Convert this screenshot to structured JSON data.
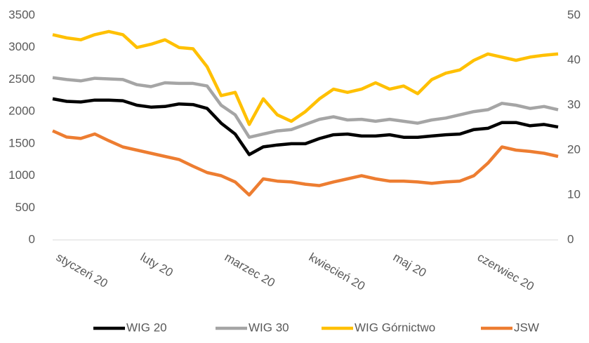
{
  "chart_data": {
    "type": "line",
    "categories": [
      "styczeń 20",
      null,
      null,
      null,
      null,
      null,
      "luty 20",
      null,
      null,
      null,
      null,
      null,
      "marzec 20",
      null,
      null,
      null,
      null,
      null,
      "kwiecień 20",
      null,
      null,
      null,
      null,
      null,
      "maj 20",
      null,
      null,
      null,
      null,
      null,
      "czerwiec 20",
      null,
      null,
      null,
      null,
      null,
      null
    ],
    "series": [
      {
        "name": "WIG 20",
        "color": "#000000",
        "values": [
          2200,
          2160,
          2150,
          2180,
          2180,
          2170,
          2100,
          2070,
          2080,
          2120,
          2110,
          2050,
          1820,
          1650,
          1330,
          1450,
          1480,
          1500,
          1500,
          1580,
          1640,
          1650,
          1620,
          1620,
          1640,
          1600,
          1600,
          1620,
          1640,
          1650,
          1720,
          1740,
          1830,
          1830,
          1780,
          1800,
          1760
        ]
      },
      {
        "name": "WIG 30",
        "color": "#a5a5a5",
        "values": [
          2530,
          2500,
          2480,
          2520,
          2510,
          2500,
          2420,
          2390,
          2450,
          2440,
          2440,
          2400,
          2100,
          1950,
          1600,
          1650,
          1700,
          1720,
          1800,
          1880,
          1920,
          1870,
          1880,
          1850,
          1880,
          1850,
          1820,
          1870,
          1900,
          1950,
          2000,
          2030,
          2130,
          2100,
          2050,
          2080,
          2030
        ]
      },
      {
        "name": "WIG Górnictwo",
        "color": "#ffc000",
        "values": [
          3200,
          3150,
          3120,
          3200,
          3250,
          3200,
          3000,
          3050,
          3120,
          3000,
          2980,
          2700,
          2250,
          2300,
          1800,
          2200,
          1950,
          1850,
          2000,
          2200,
          2350,
          2300,
          2350,
          2450,
          2350,
          2400,
          2280,
          2500,
          2600,
          2650,
          2800,
          2900,
          2850,
          2800,
          2850,
          2880,
          2900
        ]
      },
      {
        "name": "JSW",
        "color": "#ed7d31",
        "axis": "y2",
        "values": [
          24.3,
          22.9,
          22.6,
          23.6,
          22.1,
          20.7,
          20,
          19.3,
          18.6,
          17.9,
          16.4,
          15,
          14.3,
          12.9,
          10,
          13.6,
          13.1,
          12.9,
          12.4,
          12.1,
          12.9,
          13.6,
          14.3,
          13.6,
          13.1,
          13.1,
          12.9,
          12.6,
          12.9,
          13.1,
          14.3,
          17.1,
          20.7,
          20,
          19.7,
          19.3,
          18.6
        ]
      }
    ],
    "ylim": [
      0,
      3500
    ],
    "yticks": [
      0,
      500,
      1000,
      1500,
      2000,
      2500,
      3000,
      3500
    ],
    "y2lim": [
      0,
      50
    ],
    "y2ticks": [
      0,
      10,
      20,
      30,
      40,
      50
    ],
    "grid": false,
    "legend": "bottom"
  }
}
